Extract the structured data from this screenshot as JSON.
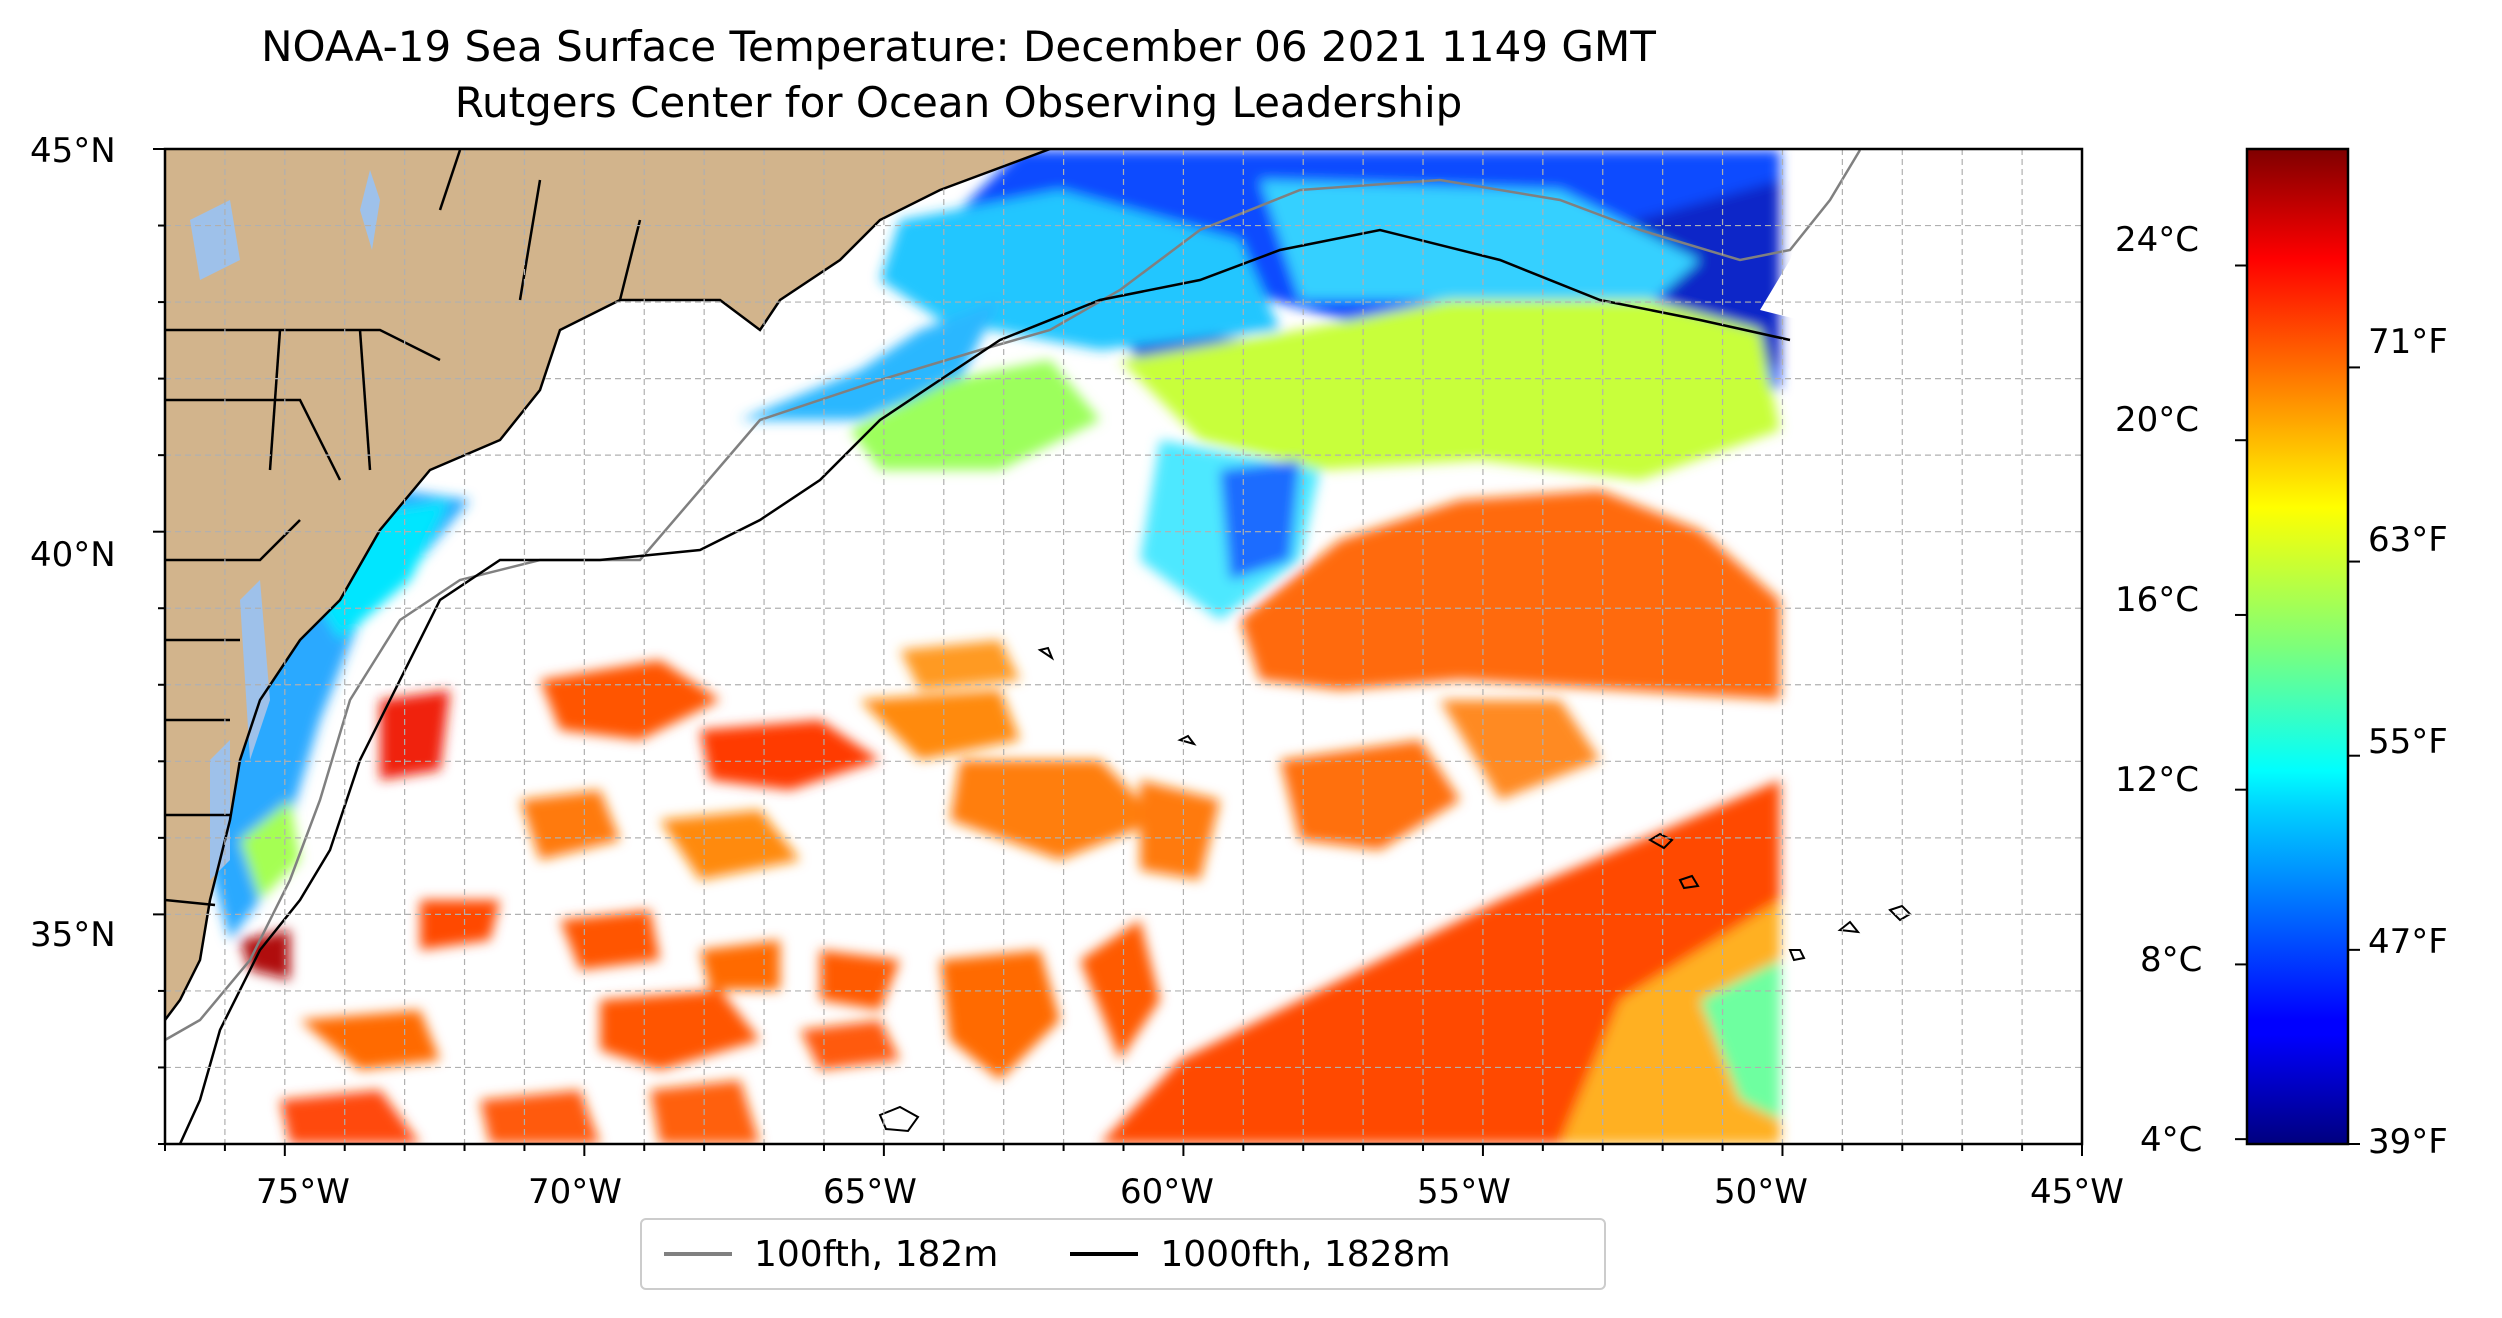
{
  "title": "NOAA-19 Sea Surface Temperature: December 06 2021 1149 GMT",
  "subtitle": "Rutgers Center for Ocean Observing Leadership",
  "map": {
    "lon_ticks": [
      "75°W",
      "70°W",
      "65°W",
      "60°W",
      "55°W",
      "50°W",
      "45°W"
    ],
    "lat_ticks": [
      "45°N",
      "40°N",
      "35°N"
    ],
    "land_color": "#d2b48c",
    "lake_color": "#9ec1ea",
    "grid": true
  },
  "colorbar": {
    "colormap": "jet",
    "celsius_ticks": [
      "24°C",
      "20°C",
      "16°C",
      "12°C",
      "8°C",
      "4°C"
    ],
    "fahrenheit_ticks": [
      "71°F",
      "63°F",
      "55°F",
      "47°F",
      "39°F"
    ]
  },
  "legend": {
    "items": [
      {
        "label": "100fth, 182m",
        "color": "#808080"
      },
      {
        "label": "1000fth, 1828m",
        "color": "#000000"
      }
    ]
  }
}
